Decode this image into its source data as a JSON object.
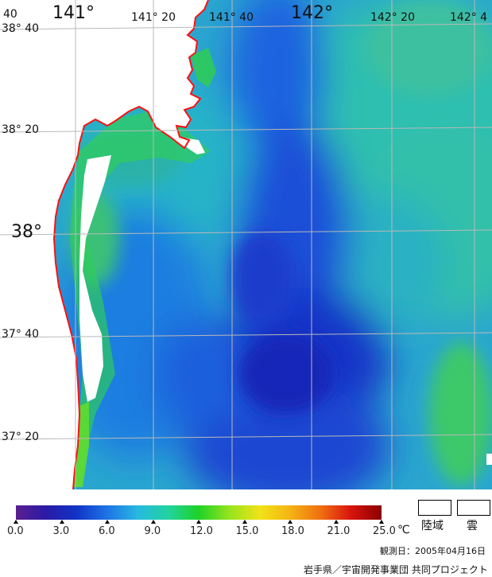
{
  "map": {
    "lon_labels": [
      {
        "text": "141°",
        "big": true
      },
      {
        "text": "141° 20",
        "big": false
      },
      {
        "text": "141° 40",
        "big": false
      },
      {
        "text": "142°",
        "big": true
      },
      {
        "text": "142° 20",
        "big": false
      },
      {
        "text": "142° 4",
        "big": false
      }
    ],
    "corner_label": "40",
    "lat_labels": [
      {
        "text": "38° 40",
        "big": false
      },
      {
        "text": "38° 20",
        "big": false
      },
      {
        "text": "38°",
        "big": true
      },
      {
        "text": "37° 40",
        "big": false
      },
      {
        "text": "37° 20",
        "big": false
      }
    ]
  },
  "legend": {
    "ticks": [
      "0.0",
      "3.0",
      "6.0",
      "9.0",
      "12.0",
      "15.0",
      "18.0",
      "21.0",
      "25.0"
    ],
    "unit": "℃",
    "land_label": "陸域",
    "cloud_label": "雲",
    "colors": [
      "#5a1f8f",
      "#2a1aa6",
      "#1034c8",
      "#1e74e6",
      "#27b9e0",
      "#22d3a0",
      "#1ed227",
      "#95e41d",
      "#f1e219",
      "#f5b414",
      "#f06f10",
      "#d8140e",
      "#8a0000"
    ]
  },
  "observation_date": "観測日：2005年04月16日",
  "credit": "岩手県／宇宙開発事業団 共同プロジェクト"
}
